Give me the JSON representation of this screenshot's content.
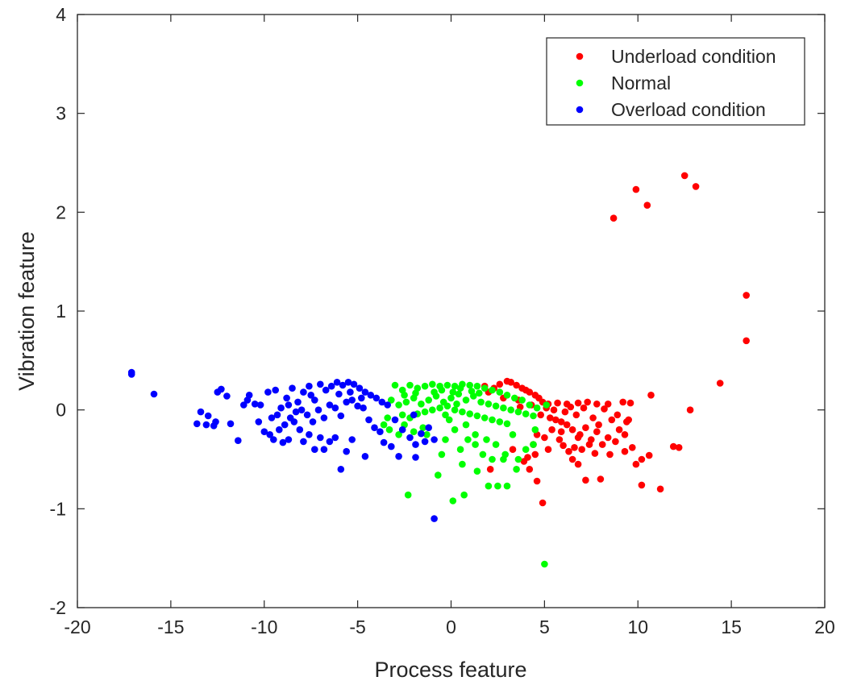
{
  "chart_data": {
    "type": "scatter",
    "title": "",
    "xlabel": "Process feature",
    "ylabel": "Vibration feature",
    "xlim": [
      -20,
      20
    ],
    "ylim": [
      -2,
      4
    ],
    "xticks": [
      -20,
      -15,
      -10,
      -5,
      0,
      5,
      10,
      15,
      20
    ],
    "yticks": [
      -2,
      -1,
      0,
      1,
      2,
      3,
      4
    ],
    "grid": false,
    "legend_position": "top-right",
    "series": [
      {
        "name": "Underload condition",
        "color": "#ff0000",
        "points": [
          [
            8.7,
            1.94
          ],
          [
            9.9,
            2.23
          ],
          [
            10.5,
            2.07
          ],
          [
            12.5,
            2.37
          ],
          [
            13.1,
            2.26
          ],
          [
            15.8,
            1.16
          ],
          [
            15.8,
            0.7
          ],
          [
            14.4,
            0.27
          ],
          [
            12.8,
            0.0
          ],
          [
            10.7,
            0.15
          ],
          [
            10.2,
            -0.76
          ],
          [
            11.2,
            -0.8
          ],
          [
            12.2,
            -0.38
          ],
          [
            11.9,
            -0.37
          ],
          [
            10.6,
            -0.46
          ],
          [
            10.2,
            -0.5
          ],
          [
            9.9,
            -0.55
          ],
          [
            9.7,
            -0.38
          ],
          [
            9.3,
            -0.42
          ],
          [
            8.5,
            -0.45
          ],
          [
            8.0,
            -0.7
          ],
          [
            7.2,
            -0.71
          ],
          [
            6.8,
            -0.55
          ],
          [
            6.5,
            -0.5
          ],
          [
            4.9,
            -0.94
          ],
          [
            4.6,
            -0.72
          ],
          [
            4.5,
            -0.45
          ],
          [
            4.2,
            -0.6
          ],
          [
            2.1,
            -0.6
          ],
          [
            3.3,
            -0.4
          ],
          [
            9.6,
            0.07
          ],
          [
            9.2,
            0.08
          ],
          [
            9.5,
            -0.1
          ],
          [
            8.4,
            0.06
          ],
          [
            7.8,
            0.06
          ],
          [
            7.3,
            0.08
          ],
          [
            6.8,
            0.07
          ],
          [
            6.2,
            0.06
          ],
          [
            5.7,
            0.07
          ],
          [
            5.2,
            0.06
          ],
          [
            4.9,
            0.08
          ],
          [
            4.7,
            0.12
          ],
          [
            4.5,
            0.15
          ],
          [
            4.2,
            0.18
          ],
          [
            4.0,
            0.2
          ],
          [
            3.8,
            0.22
          ],
          [
            3.5,
            0.25
          ],
          [
            3.2,
            0.28
          ],
          [
            3.0,
            0.29
          ],
          [
            2.6,
            0.26
          ],
          [
            2.3,
            0.22
          ],
          [
            2.0,
            0.18
          ],
          [
            1.8,
            0.24
          ],
          [
            2.8,
            0.12
          ],
          [
            3.6,
            0.1
          ],
          [
            4.8,
            -0.05
          ],
          [
            5.3,
            -0.08
          ],
          [
            5.6,
            -0.1
          ],
          [
            5.9,
            -0.12
          ],
          [
            6.2,
            -0.15
          ],
          [
            6.5,
            -0.2
          ],
          [
            6.9,
            -0.25
          ],
          [
            7.2,
            -0.18
          ],
          [
            7.5,
            -0.3
          ],
          [
            7.8,
            -0.22
          ],
          [
            8.1,
            -0.35
          ],
          [
            8.4,
            -0.28
          ],
          [
            8.8,
            -0.32
          ],
          [
            9.0,
            -0.2
          ],
          [
            9.3,
            -0.25
          ],
          [
            5.4,
            -0.2
          ],
          [
            5.8,
            -0.3
          ],
          [
            6.0,
            -0.36
          ],
          [
            6.3,
            -0.42
          ],
          [
            6.6,
            -0.38
          ],
          [
            7.0,
            -0.4
          ],
          [
            7.4,
            -0.35
          ],
          [
            7.7,
            -0.44
          ],
          [
            5.0,
            -0.28
          ],
          [
            5.2,
            -0.4
          ],
          [
            4.4,
            -0.35
          ],
          [
            4.1,
            -0.48
          ],
          [
            3.9,
            -0.52
          ],
          [
            4.6,
            -0.25
          ],
          [
            5.5,
            0.0
          ],
          [
            6.1,
            -0.02
          ],
          [
            6.7,
            -0.05
          ],
          [
            7.1,
            0.02
          ],
          [
            7.6,
            -0.08
          ],
          [
            8.2,
            0.01
          ],
          [
            8.6,
            -0.1
          ],
          [
            9.4,
            -0.12
          ],
          [
            5.1,
            0.02
          ],
          [
            4.3,
            0.05
          ],
          [
            3.7,
            0.03
          ],
          [
            6.4,
            0.03
          ],
          [
            5.9,
            -0.22
          ],
          [
            6.8,
            -0.28
          ],
          [
            7.9,
            -0.15
          ],
          [
            8.9,
            -0.05
          ]
        ]
      },
      {
        "name": "Normal",
        "color": "#00ff00",
        "points": [
          [
            5.0,
            -1.56
          ],
          [
            -2.3,
            -0.86
          ],
          [
            0.1,
            -0.92
          ],
          [
            0.7,
            -0.86
          ],
          [
            -0.7,
            -0.66
          ],
          [
            1.4,
            -0.62
          ],
          [
            2.0,
            -0.77
          ],
          [
            2.5,
            -0.77
          ],
          [
            3.0,
            -0.77
          ],
          [
            3.5,
            -0.6
          ],
          [
            1.7,
            -0.45
          ],
          [
            2.2,
            -0.5
          ],
          [
            2.8,
            -0.5
          ],
          [
            3.6,
            -0.5
          ],
          [
            0.5,
            -0.4
          ],
          [
            0.9,
            -0.3
          ],
          [
            1.3,
            -0.25
          ],
          [
            1.9,
            -0.3
          ],
          [
            2.4,
            -0.35
          ],
          [
            -0.3,
            -0.3
          ],
          [
            -1.3,
            -0.25
          ],
          [
            -2.0,
            -0.22
          ],
          [
            -2.8,
            -0.25
          ],
          [
            -3.3,
            -0.2
          ],
          [
            -3.6,
            -0.15
          ],
          [
            4.4,
            -0.35
          ],
          [
            4.0,
            -0.4
          ],
          [
            0.2,
            -0.2
          ],
          [
            -0.1,
            -0.1
          ],
          [
            0.8,
            -0.15
          ],
          [
            -3.0,
            0.25
          ],
          [
            -2.6,
            0.2
          ],
          [
            -2.2,
            0.25
          ],
          [
            -1.8,
            0.22
          ],
          [
            -1.4,
            0.24
          ],
          [
            -1.0,
            0.26
          ],
          [
            -0.6,
            0.24
          ],
          [
            -0.2,
            0.25
          ],
          [
            0.2,
            0.24
          ],
          [
            0.6,
            0.26
          ],
          [
            1.0,
            0.25
          ],
          [
            1.4,
            0.24
          ],
          [
            1.8,
            0.22
          ],
          [
            2.2,
            0.2
          ],
          [
            2.6,
            0.18
          ],
          [
            3.0,
            0.15
          ],
          [
            3.4,
            0.12
          ],
          [
            3.8,
            0.1
          ],
          [
            4.2,
            0.05
          ],
          [
            4.6,
            0.02
          ],
          [
            -3.2,
            0.1
          ],
          [
            -2.8,
            0.05
          ],
          [
            -2.4,
            0.08
          ],
          [
            -2.0,
            0.12
          ],
          [
            -1.6,
            0.06
          ],
          [
            -1.2,
            0.1
          ],
          [
            -0.8,
            0.14
          ],
          [
            -0.4,
            0.08
          ],
          [
            0.0,
            0.12
          ],
          [
            0.4,
            0.16
          ],
          [
            0.8,
            0.1
          ],
          [
            1.2,
            0.14
          ],
          [
            1.6,
            0.08
          ],
          [
            2.0,
            0.06
          ],
          [
            2.4,
            0.04
          ],
          [
            2.8,
            0.02
          ],
          [
            3.2,
            0.0
          ],
          [
            3.6,
            -0.02
          ],
          [
            4.0,
            -0.04
          ],
          [
            4.4,
            -0.06
          ],
          [
            -2.6,
            -0.05
          ],
          [
            -2.2,
            -0.08
          ],
          [
            -1.8,
            -0.04
          ],
          [
            -1.4,
            -0.02
          ],
          [
            -1.0,
            0.0
          ],
          [
            -0.6,
            0.02
          ],
          [
            -0.2,
            0.04
          ],
          [
            0.2,
            0.0
          ],
          [
            0.6,
            -0.02
          ],
          [
            1.0,
            -0.04
          ],
          [
            1.4,
            -0.06
          ],
          [
            1.8,
            -0.08
          ],
          [
            2.2,
            -0.1
          ],
          [
            2.6,
            -0.12
          ],
          [
            3.0,
            -0.14
          ],
          [
            -0.9,
            0.18
          ],
          [
            -0.5,
            0.2
          ],
          [
            0.1,
            0.18
          ],
          [
            0.5,
            0.22
          ],
          [
            1.1,
            0.19
          ],
          [
            1.5,
            0.17
          ],
          [
            -1.9,
            0.17
          ],
          [
            -2.5,
            0.15
          ],
          [
            -0.3,
            -0.05
          ],
          [
            0.3,
            0.06
          ],
          [
            5.1,
            0.05
          ],
          [
            -3.4,
            -0.08
          ],
          [
            1.3,
            -0.35
          ],
          [
            0.6,
            -0.55
          ],
          [
            2.9,
            -0.45
          ],
          [
            -2.5,
            -0.15
          ],
          [
            -1.5,
            -0.18
          ],
          [
            3.3,
            -0.25
          ],
          [
            4.5,
            -0.2
          ],
          [
            -0.5,
            -0.45
          ]
        ]
      },
      {
        "name": "Overload condition",
        "color": "#0000ff",
        "points": [
          [
            -17.1,
            0.38
          ],
          [
            -17.1,
            0.36
          ],
          [
            -15.9,
            0.16
          ],
          [
            -13.6,
            -0.14
          ],
          [
            -13.4,
            -0.02
          ],
          [
            -13.1,
            -0.15
          ],
          [
            -13.0,
            -0.06
          ],
          [
            -12.7,
            -0.16
          ],
          [
            -12.6,
            -0.12
          ],
          [
            -12.5,
            0.18
          ],
          [
            -12.3,
            0.21
          ],
          [
            -12.0,
            0.14
          ],
          [
            -11.8,
            -0.14
          ],
          [
            -11.4,
            -0.31
          ],
          [
            -11.1,
            0.05
          ],
          [
            -10.9,
            0.1
          ],
          [
            -10.5,
            0.06
          ],
          [
            -10.3,
            -0.12
          ],
          [
            -10.0,
            -0.22
          ],
          [
            -9.7,
            -0.25
          ],
          [
            -9.5,
            -0.3
          ],
          [
            -9.2,
            -0.2
          ],
          [
            -9.0,
            -0.33
          ],
          [
            -8.7,
            -0.3
          ],
          [
            -8.4,
            -0.12
          ],
          [
            -8.1,
            -0.2
          ],
          [
            -7.9,
            -0.32
          ],
          [
            -7.6,
            -0.25
          ],
          [
            -7.3,
            -0.4
          ],
          [
            -7.0,
            -0.28
          ],
          [
            -6.8,
            -0.4
          ],
          [
            -6.5,
            -0.32
          ],
          [
            -6.2,
            -0.28
          ],
          [
            -5.9,
            -0.6
          ],
          [
            -5.6,
            -0.42
          ],
          [
            -5.3,
            -0.3
          ],
          [
            -4.6,
            -0.47
          ],
          [
            -3.6,
            -0.33
          ],
          [
            -3.2,
            -0.37
          ],
          [
            -2.8,
            -0.47
          ],
          [
            -1.9,
            -0.48
          ],
          [
            -1.4,
            -0.32
          ],
          [
            -0.9,
            -1.1
          ],
          [
            -0.9,
            -0.3
          ],
          [
            -1.9,
            -0.35
          ],
          [
            -10.8,
            0.15
          ],
          [
            -10.2,
            0.05
          ],
          [
            -9.8,
            0.18
          ],
          [
            -9.4,
            0.2
          ],
          [
            -9.1,
            0.02
          ],
          [
            -8.8,
            0.12
          ],
          [
            -8.5,
            0.22
          ],
          [
            -8.2,
            0.08
          ],
          [
            -7.9,
            0.18
          ],
          [
            -7.6,
            0.24
          ],
          [
            -7.3,
            0.1
          ],
          [
            -7.0,
            0.26
          ],
          [
            -6.7,
            0.2
          ],
          [
            -6.4,
            0.24
          ],
          [
            -6.1,
            0.28
          ],
          [
            -5.8,
            0.25
          ],
          [
            -5.5,
            0.28
          ],
          [
            -5.2,
            0.26
          ],
          [
            -4.9,
            0.22
          ],
          [
            -4.6,
            0.18
          ],
          [
            -4.3,
            0.15
          ],
          [
            -4.0,
            0.12
          ],
          [
            -3.7,
            0.08
          ],
          [
            -3.4,
            0.05
          ],
          [
            -9.6,
            -0.08
          ],
          [
            -9.3,
            -0.05
          ],
          [
            -8.9,
            -0.15
          ],
          [
            -8.6,
            -0.08
          ],
          [
            -8.3,
            -0.02
          ],
          [
            -8.0,
            0.0
          ],
          [
            -7.7,
            -0.05
          ],
          [
            -7.4,
            -0.12
          ],
          [
            -7.1,
            0.0
          ],
          [
            -6.8,
            -0.08
          ],
          [
            -6.5,
            0.05
          ],
          [
            -6.2,
            0.02
          ],
          [
            -5.9,
            -0.06
          ],
          [
            -5.6,
            0.08
          ],
          [
            -5.3,
            0.1
          ],
          [
            -5.0,
            0.04
          ],
          [
            -4.7,
            0.02
          ],
          [
            -4.4,
            -0.1
          ],
          [
            -4.1,
            -0.18
          ],
          [
            -3.8,
            -0.22
          ],
          [
            -3.0,
            -0.1
          ],
          [
            -2.6,
            -0.2
          ],
          [
            -2.2,
            -0.28
          ],
          [
            -1.6,
            -0.24
          ],
          [
            -1.2,
            -0.18
          ],
          [
            -2.0,
            -0.05
          ],
          [
            -6.0,
            0.16
          ],
          [
            -5.4,
            0.18
          ],
          [
            -4.8,
            0.12
          ],
          [
            -7.5,
            0.15
          ],
          [
            -8.7,
            0.05
          ]
        ]
      }
    ]
  }
}
